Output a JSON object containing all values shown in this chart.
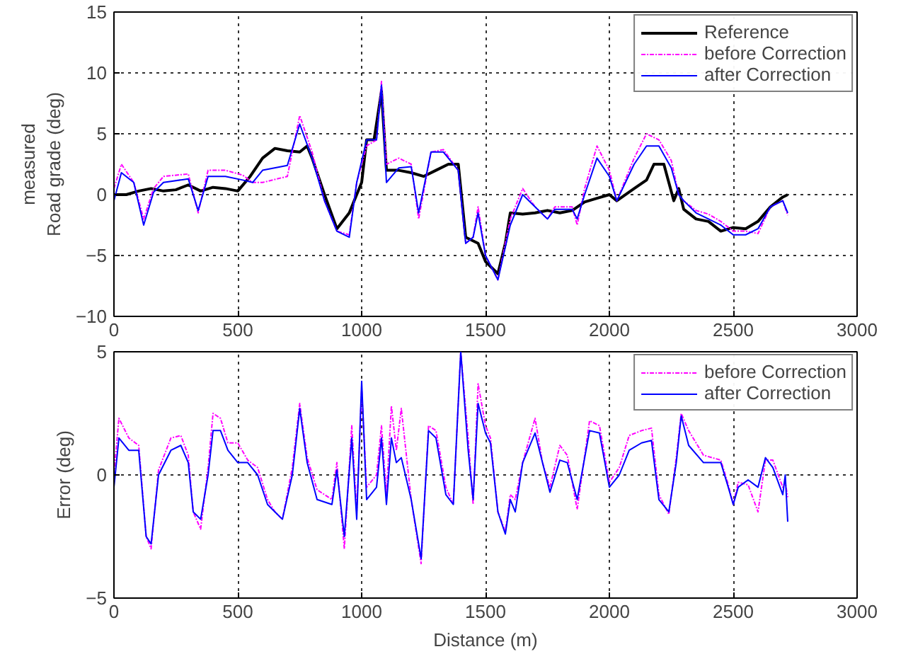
{
  "chart_data": [
    {
      "type": "line",
      "ylabel": "measured\nRoad grade (deg)",
      "xlim": [
        0,
        3000
      ],
      "ylim": [
        -10,
        15
      ],
      "xticks": [
        0,
        500,
        1000,
        1500,
        2000,
        2500,
        3000
      ],
      "yticks": [
        -10,
        -5,
        0,
        5,
        10,
        15
      ],
      "grid": true,
      "legend": "top right",
      "series": [
        {
          "name": "Reference",
          "color": "#000000",
          "line_style": "solid",
          "x": [
            0,
            50,
            100,
            150,
            200,
            250,
            300,
            350,
            400,
            450,
            500,
            550,
            600,
            650,
            700,
            750,
            780,
            800,
            850,
            900,
            950,
            970,
            1000,
            1020,
            1050,
            1080,
            1100,
            1150,
            1200,
            1250,
            1300,
            1350,
            1390,
            1420,
            1470,
            1500,
            1550,
            1580,
            1600,
            1650,
            1700,
            1750,
            1800,
            1850,
            1900,
            1950,
            2000,
            2030,
            2100,
            2150,
            2180,
            2220,
            2260,
            2280,
            2300,
            2350,
            2400,
            2450,
            2500,
            2550,
            2600,
            2650,
            2700,
            2720
          ],
          "values": [
            0,
            0,
            0.3,
            0.5,
            0.3,
            0.4,
            0.8,
            0.3,
            0.6,
            0.5,
            0.3,
            1.5,
            3,
            3.8,
            3.6,
            3.5,
            4,
            3,
            0,
            -2.8,
            -1.5,
            -0.5,
            1,
            4.5,
            4.5,
            8.5,
            2,
            2,
            1.8,
            1.5,
            2,
            2.5,
            2.5,
            -3.5,
            -4,
            -5.5,
            -6.5,
            -4,
            -1.5,
            -1.6,
            -1.5,
            -1.3,
            -1.5,
            -1.3,
            -0.6,
            -0.3,
            0,
            -0.5,
            0.5,
            1.2,
            2.5,
            2.5,
            -0.5,
            0.5,
            -1.2,
            -2,
            -2.2,
            -3,
            -2.7,
            -2.8,
            -2.2,
            -1,
            -0.2,
            0
          ]
        },
        {
          "name": "before Correction",
          "color": "#ff00ff",
          "line_style": "dashdot",
          "x": [
            0,
            30,
            80,
            120,
            160,
            200,
            300,
            340,
            380,
            450,
            520,
            560,
            600,
            700,
            750,
            800,
            850,
            900,
            950,
            980,
            1020,
            1060,
            1080,
            1100,
            1150,
            1200,
            1230,
            1280,
            1330,
            1390,
            1420,
            1450,
            1470,
            1500,
            1550,
            1600,
            1650,
            1700,
            1750,
            1780,
            1850,
            1870,
            1900,
            1950,
            2000,
            2030,
            2100,
            2150,
            2200,
            2250,
            2280,
            2300,
            2350,
            2400,
            2450,
            2500,
            2550,
            2600,
            2650,
            2700,
            2720
          ],
          "values": [
            0.5,
            2.5,
            1,
            -2,
            0.5,
            1.5,
            1.7,
            -1.5,
            2,
            2,
            1.6,
            1,
            1,
            1.5,
            6.5,
            3.5,
            -0.5,
            -3,
            -3.3,
            1,
            4,
            4.5,
            9.3,
            2.5,
            3,
            2.5,
            -2,
            3.5,
            3.7,
            2,
            -4,
            -3.5,
            -1,
            -5,
            -7,
            -2,
            0.5,
            -1,
            -2,
            -1,
            -1,
            -2.5,
            0.5,
            4,
            2,
            -0.5,
            3,
            5,
            4.5,
            2.8,
            0,
            -0.5,
            -1.3,
            -1.6,
            -2.2,
            -3,
            -3,
            -3.2,
            -1,
            -0.5,
            -1.7
          ]
        },
        {
          "name": "after Correction",
          "color": "#0000ff",
          "line_style": "solid",
          "x": [
            0,
            30,
            80,
            120,
            160,
            200,
            300,
            340,
            380,
            450,
            520,
            560,
            600,
            700,
            750,
            800,
            850,
            900,
            950,
            980,
            1020,
            1060,
            1080,
            1100,
            1150,
            1200,
            1230,
            1280,
            1330,
            1390,
            1420,
            1450,
            1470,
            1500,
            1550,
            1600,
            1650,
            1700,
            1750,
            1780,
            1850,
            1870,
            1900,
            1950,
            2000,
            2030,
            2100,
            2150,
            2200,
            2250,
            2280,
            2300,
            2350,
            2400,
            2450,
            2500,
            2550,
            2600,
            2650,
            2700,
            2720
          ],
          "values": [
            -0.5,
            1.8,
            1,
            -2.5,
            0.2,
            1,
            1.3,
            -1.3,
            1.5,
            1.5,
            1.2,
            1,
            2,
            2.4,
            5.8,
            3,
            -0.5,
            -3,
            -3.5,
            1,
            4.5,
            4.5,
            9,
            1,
            2.2,
            2.3,
            -1.5,
            3.5,
            3.5,
            2,
            -4,
            -3.5,
            -1.5,
            -5,
            -7,
            -2.5,
            0,
            -1,
            -2,
            -1.2,
            -1.2,
            -2,
            0,
            3,
            1.5,
            -0.5,
            2.5,
            4,
            4,
            2.2,
            0,
            -0.5,
            -1.5,
            -2,
            -2.5,
            -3.3,
            -3.3,
            -2.8,
            -1,
            -0.5,
            -1.5
          ]
        }
      ]
    },
    {
      "type": "line",
      "xlabel": "Distance (m)",
      "ylabel": "Error (deg)",
      "xlim": [
        0,
        3000
      ],
      "ylim": [
        -5,
        5
      ],
      "xticks": [
        0,
        500,
        1000,
        1500,
        2000,
        2500,
        3000
      ],
      "yticks": [
        -5,
        0,
        5
      ],
      "grid": true,
      "legend": "top right",
      "series": [
        {
          "name": "before Correction",
          "color": "#ff00ff",
          "line_style": "dashdot",
          "x": [
            0,
            20,
            60,
            100,
            130,
            150,
            180,
            230,
            270,
            300,
            320,
            350,
            380,
            400,
            430,
            460,
            500,
            540,
            580,
            620,
            650,
            680,
            720,
            750,
            780,
            820,
            880,
            900,
            930,
            960,
            980,
            1000,
            1020,
            1060,
            1080,
            1100,
            1120,
            1140,
            1160,
            1200,
            1240,
            1270,
            1300,
            1340,
            1370,
            1400,
            1430,
            1450,
            1470,
            1500,
            1520,
            1550,
            1580,
            1600,
            1620,
            1650,
            1700,
            1730,
            1760,
            1800,
            1830,
            1870,
            1920,
            1960,
            2000,
            2040,
            2080,
            2130,
            2170,
            2200,
            2240,
            2270,
            2290,
            2320,
            2380,
            2450,
            2480,
            2500,
            2520,
            2560,
            2600,
            2630,
            2660,
            2700,
            2710,
            2720
          ],
          "values": [
            0,
            2.3,
            1.5,
            1.2,
            -2.5,
            -3,
            0.2,
            1.5,
            1.6,
            0.8,
            -1.5,
            -2.2,
            0.3,
            2.5,
            2.3,
            1.3,
            1.3,
            0.6,
            0.3,
            -1,
            -1.5,
            -1.8,
            0.3,
            2.9,
            0.7,
            -0.6,
            -1,
            0.5,
            -3,
            2,
            -1.5,
            3.5,
            -0.5,
            0,
            2,
            -0.8,
            2.8,
            1,
            2.7,
            -1,
            -3.6,
            2,
            1.8,
            -0.5,
            -1.2,
            5,
            1.5,
            -1.2,
            3.7,
            2,
            1.5,
            -1.5,
            -2.3,
            -0.8,
            -1,
            0.5,
            2.3,
            0.5,
            -0.5,
            1.2,
            0.8,
            -1.4,
            2.2,
            2,
            -0.3,
            0.3,
            1.6,
            1.8,
            1.9,
            -0.8,
            -1.6,
            0.7,
            2.5,
            1.8,
            0.8,
            0.6,
            -0.4,
            -1.2,
            -0.3,
            -0.4,
            -1.5,
            0.6,
            0.6,
            -0.5,
            -0.3,
            -0.9
          ]
        },
        {
          "name": "after Correction",
          "color": "#0000ff",
          "line_style": "solid",
          "x": [
            0,
            20,
            60,
            100,
            130,
            150,
            180,
            230,
            270,
            300,
            320,
            350,
            380,
            400,
            430,
            460,
            500,
            540,
            580,
            620,
            650,
            680,
            720,
            750,
            780,
            820,
            880,
            900,
            930,
            960,
            980,
            1000,
            1020,
            1060,
            1080,
            1100,
            1120,
            1140,
            1160,
            1200,
            1240,
            1270,
            1300,
            1340,
            1370,
            1400,
            1430,
            1450,
            1470,
            1500,
            1520,
            1550,
            1580,
            1600,
            1620,
            1650,
            1700,
            1730,
            1760,
            1800,
            1830,
            1870,
            1920,
            1960,
            2000,
            2040,
            2080,
            2130,
            2170,
            2200,
            2240,
            2270,
            2290,
            2320,
            2380,
            2450,
            2480,
            2500,
            2520,
            2560,
            2600,
            2630,
            2660,
            2700,
            2710,
            2720
          ],
          "values": [
            -0.5,
            1.5,
            1,
            1,
            -2.5,
            -2.8,
            0,
            1,
            1.2,
            0.5,
            -1.5,
            -1.8,
            0,
            1.8,
            1.8,
            1,
            0.5,
            0.5,
            0,
            -1.2,
            -1.5,
            -1.8,
            0,
            2.7,
            0.5,
            -1,
            -1.2,
            0.2,
            -2.5,
            1.5,
            -1.8,
            3.8,
            -1,
            -0.5,
            1.5,
            -1.2,
            1.5,
            0.5,
            0.7,
            -1,
            -3.4,
            1.8,
            1.5,
            -0.8,
            -1.2,
            5,
            1,
            -1,
            2.9,
            1.7,
            1.3,
            -1.5,
            -2.4,
            -1,
            -1.5,
            0.5,
            1.7,
            0.5,
            -0.7,
            0.6,
            0.5,
            -1,
            1.8,
            1.7,
            -0.5,
            0,
            1,
            1.3,
            1.4,
            -1,
            -1.5,
            0.5,
            2.4,
            1.2,
            0.5,
            0.5,
            -0.5,
            -1.2,
            -0.5,
            -0.2,
            -0.5,
            0.7,
            0.3,
            -0.8,
            0,
            -1.9
          ]
        }
      ]
    }
  ]
}
